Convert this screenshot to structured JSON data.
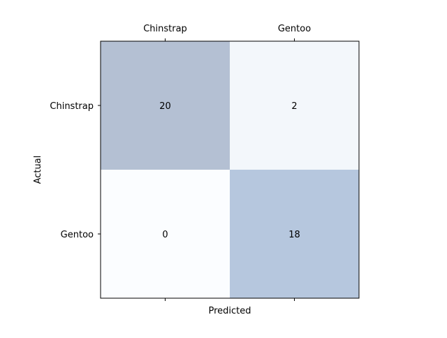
{
  "chart_data": {
    "type": "heatmap",
    "title": "",
    "xlabel": "Predicted",
    "ylabel": "Actual",
    "x_categories": [
      "Chinstrap",
      "Gentoo"
    ],
    "y_categories": [
      "Chinstrap",
      "Gentoo"
    ],
    "values": [
      [
        20,
        2
      ],
      [
        0,
        18
      ]
    ],
    "cell_colors": [
      [
        "#b4c0d3",
        "#f3f7fb"
      ],
      [
        "#fbfdff",
        "#b6c7de"
      ]
    ],
    "x_tick_position": "top",
    "grid": false
  }
}
